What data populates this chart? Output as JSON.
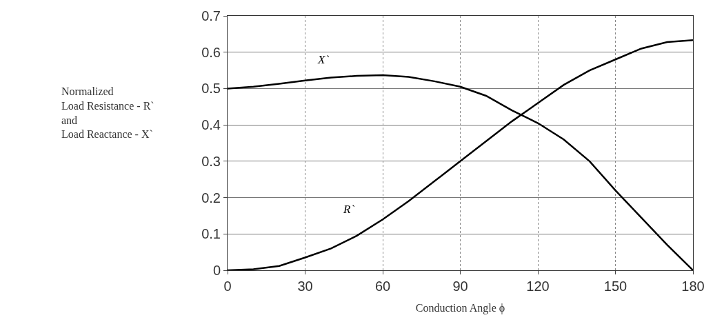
{
  "chart_data": {
    "type": "line",
    "xlabel": "Conduction Angle ϕ",
    "ylabel": "Normalized\nLoad Resistance - R`\nand\nLoad Reactance - X`",
    "x": [
      0,
      10,
      20,
      30,
      40,
      50,
      60,
      70,
      80,
      90,
      100,
      110,
      120,
      130,
      140,
      150,
      160,
      170,
      180
    ],
    "series": [
      {
        "color": "#000000",
        "values": [
          0,
          0.003,
          0.012,
          0.035,
          0.06,
          0.095,
          0.14,
          0.19,
          0.245,
          0.3,
          0.355,
          0.41,
          0.46,
          0.51,
          0.55,
          0.58,
          0.61,
          0.628,
          0.633
        ]
      },
      {
        "color": "#000000",
        "values": [
          0.5,
          0.505,
          0.513,
          0.522,
          0.53,
          0.535,
          0.537,
          0.532,
          0.52,
          0.505,
          0.48,
          0.44,
          0.405,
          0.36,
          0.3,
          0.22,
          0.145,
          0.07,
          0
        ]
      }
    ],
    "annotations": [
      "X`",
      "R`"
    ],
    "xlim": [
      0,
      180
    ],
    "xticks": [
      0,
      30,
      60,
      90,
      120,
      150,
      180
    ],
    "ylim": [
      0,
      0.7
    ],
    "yticks": [
      0,
      0.1,
      0.2,
      0.3,
      0.4,
      0.5,
      0.6,
      0.7
    ],
    "grid": true,
    "marker": "none",
    "line_style": "solid"
  }
}
